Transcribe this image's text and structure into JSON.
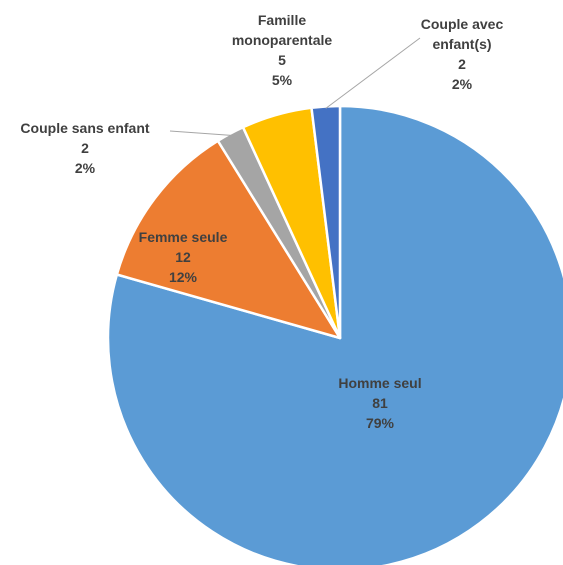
{
  "chart_data": {
    "type": "pie",
    "title": "",
    "slices": [
      {
        "name": "Homme seul",
        "value": 81,
        "percent_label": "79%",
        "color": "#5B9BD5"
      },
      {
        "name": "Femme seule",
        "value": 12,
        "percent_label": "12%",
        "color": "#ED7D31"
      },
      {
        "name": "Couple sans enfant",
        "value": 2,
        "percent_label": "2%",
        "color": "#A5A5A5"
      },
      {
        "name": "Famille monoparentale",
        "value": 5,
        "percent_label": "5%",
        "color": "#FFC000"
      },
      {
        "name": "Couple avec enfant(s)",
        "value": 2,
        "percent_label": "2%",
        "color": "#4472C4"
      }
    ],
    "start_angle_deg": 0,
    "direction": "clockwise",
    "legend": "none",
    "label_text_color": "#404040",
    "leader_line_color": "#A6A6A6"
  }
}
